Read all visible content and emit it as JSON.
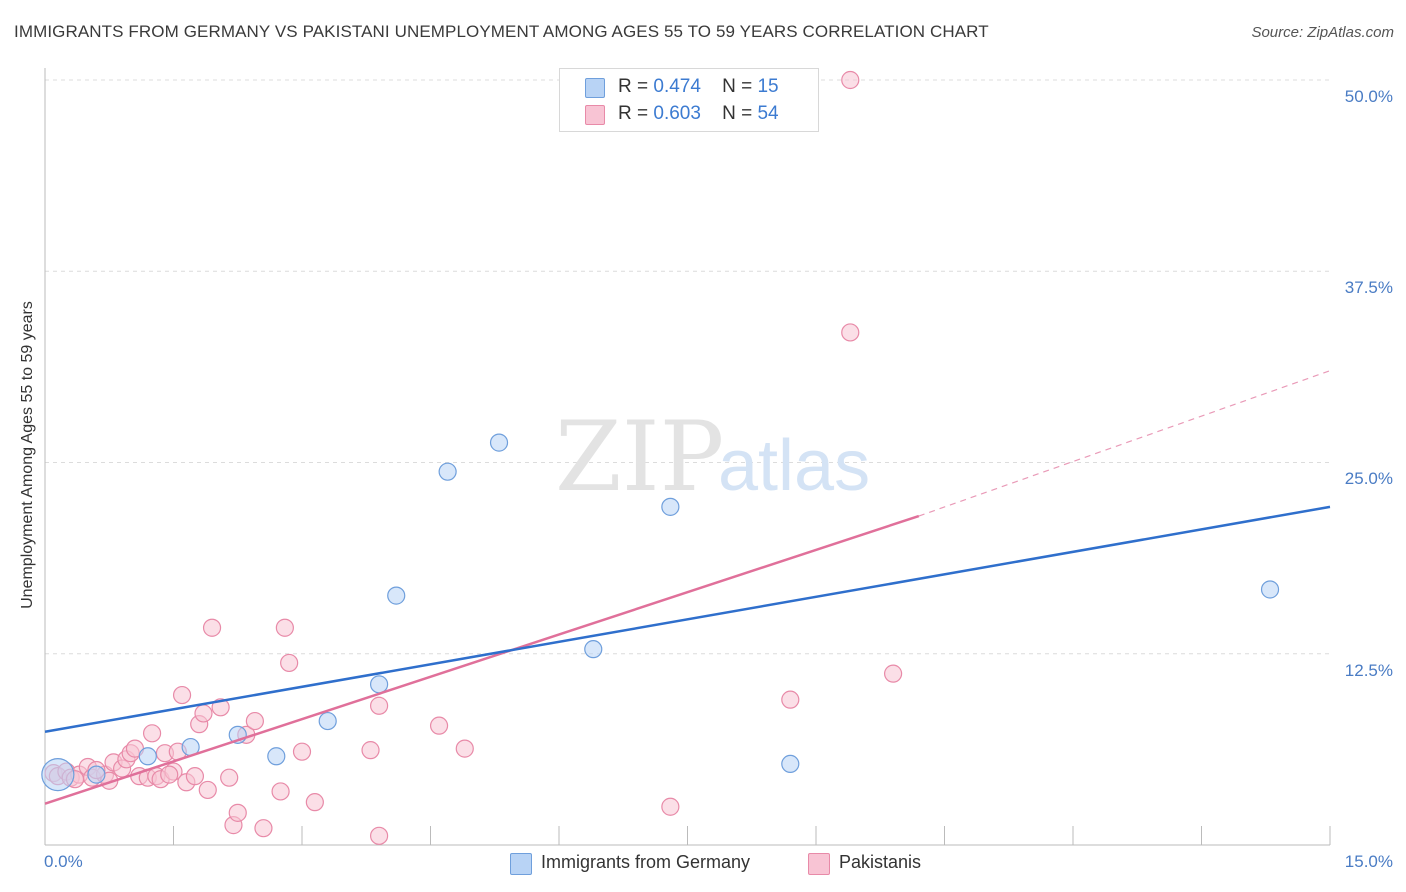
{
  "header": {
    "title": "IMMIGRANTS FROM GERMANY VS PAKISTANI UNEMPLOYMENT AMONG AGES 55 TO 59 YEARS CORRELATION CHART",
    "source": "Source: ZipAtlas.com"
  },
  "watermark": {
    "zip": "ZIP",
    "atlas": "atlas"
  },
  "legend_top": {
    "germany": {
      "r_label": "R =",
      "r_value": "0.474",
      "n_label": "N =",
      "n_value": "15"
    },
    "pakistan": {
      "r_label": "R =",
      "r_value": "0.603",
      "n_label": "N =",
      "n_value": "54"
    }
  },
  "legend_bottom": {
    "germany": "Immigrants from Germany",
    "pakistan": "Pakistanis"
  },
  "colors": {
    "germany_fill": "#b8d3f5",
    "germany_stroke": "#6f9fdc",
    "germany_line": "#2f6fcc",
    "pakistan_fill": "#f8c4d4",
    "pakistan_stroke": "#e88aa8",
    "pakistan_line": "#e0709a",
    "grid": "#dcdcdc",
    "tick_label": "#4a7cc4"
  },
  "chart_data": {
    "type": "scatter",
    "title": "IMMIGRANTS FROM GERMANY VS PAKISTANI UNEMPLOYMENT AMONG AGES 55 TO 59 YEARS CORRELATION CHART",
    "xlabel": "",
    "ylabel": "Unemployment Among Ages 55 to 59 years",
    "xlim": [
      0,
      15
    ],
    "ylim": [
      0,
      50
    ],
    "x_tick_labels": [
      "0.0%",
      "15.0%"
    ],
    "y_ticks": [
      12.5,
      25.0,
      37.5,
      50.0
    ],
    "y_tick_labels": [
      "12.5%",
      "25.0%",
      "37.5%",
      "50.0%"
    ],
    "grid": "horizontal dashed",
    "legend_position": "top-center",
    "series": [
      {
        "name": "Immigrants from Germany",
        "r": 0.474,
        "n": 15,
        "points": [
          {
            "x": 0.15,
            "y": 4.6,
            "size": "large"
          },
          {
            "x": 0.6,
            "y": 4.6
          },
          {
            "x": 1.2,
            "y": 5.8
          },
          {
            "x": 1.7,
            "y": 6.4
          },
          {
            "x": 2.25,
            "y": 7.2
          },
          {
            "x": 2.7,
            "y": 5.8
          },
          {
            "x": 3.3,
            "y": 8.1
          },
          {
            "x": 3.9,
            "y": 10.5
          },
          {
            "x": 4.1,
            "y": 16.3
          },
          {
            "x": 4.7,
            "y": 24.4
          },
          {
            "x": 5.3,
            "y": 26.3
          },
          {
            "x": 6.4,
            "y": 12.8
          },
          {
            "x": 7.3,
            "y": 22.1
          },
          {
            "x": 8.7,
            "y": 5.3
          },
          {
            "x": 14.3,
            "y": 16.7
          }
        ],
        "trend": {
          "x0": 0,
          "y0": 7.4,
          "x1": 15,
          "y1": 22.1
        }
      },
      {
        "name": "Pakistanis",
        "r": 0.603,
        "n": 54,
        "points": [
          {
            "x": 0.1,
            "y": 4.7
          },
          {
            "x": 0.15,
            "y": 4.5
          },
          {
            "x": 0.25,
            "y": 4.8
          },
          {
            "x": 0.3,
            "y": 4.4
          },
          {
            "x": 0.4,
            "y": 4.6
          },
          {
            "x": 0.5,
            "y": 5.1
          },
          {
            "x": 0.55,
            "y": 4.4
          },
          {
            "x": 0.7,
            "y": 4.6
          },
          {
            "x": 0.75,
            "y": 4.2
          },
          {
            "x": 0.8,
            "y": 5.4
          },
          {
            "x": 0.9,
            "y": 5.0
          },
          {
            "x": 0.95,
            "y": 5.6
          },
          {
            "x": 1.0,
            "y": 6.0
          },
          {
            "x": 1.05,
            "y": 6.3
          },
          {
            "x": 1.1,
            "y": 4.5
          },
          {
            "x": 1.2,
            "y": 4.4
          },
          {
            "x": 1.25,
            "y": 7.3
          },
          {
            "x": 1.3,
            "y": 4.5
          },
          {
            "x": 1.35,
            "y": 4.3
          },
          {
            "x": 1.4,
            "y": 6.0
          },
          {
            "x": 1.5,
            "y": 4.8
          },
          {
            "x": 1.55,
            "y": 6.1
          },
          {
            "x": 1.6,
            "y": 9.8
          },
          {
            "x": 1.65,
            "y": 4.1
          },
          {
            "x": 1.75,
            "y": 4.5
          },
          {
            "x": 1.8,
            "y": 7.9
          },
          {
            "x": 1.85,
            "y": 8.6
          },
          {
            "x": 1.9,
            "y": 3.6
          },
          {
            "x": 1.95,
            "y": 14.2
          },
          {
            "x": 2.05,
            "y": 9.0
          },
          {
            "x": 2.15,
            "y": 4.4
          },
          {
            "x": 2.2,
            "y": 1.3
          },
          {
            "x": 2.25,
            "y": 2.1
          },
          {
            "x": 2.35,
            "y": 7.2
          },
          {
            "x": 2.45,
            "y": 8.1
          },
          {
            "x": 2.55,
            "y": 1.1
          },
          {
            "x": 2.75,
            "y": 3.5
          },
          {
            "x": 2.8,
            "y": 14.2
          },
          {
            "x": 2.85,
            "y": 11.9
          },
          {
            "x": 3.0,
            "y": 6.1
          },
          {
            "x": 3.15,
            "y": 2.8
          },
          {
            "x": 3.8,
            "y": 6.2
          },
          {
            "x": 3.9,
            "y": 9.1
          },
          {
            "x": 3.9,
            "y": 0.6
          },
          {
            "x": 4.6,
            "y": 7.8
          },
          {
            "x": 4.9,
            "y": 6.3
          },
          {
            "x": 7.3,
            "y": 2.5
          },
          {
            "x": 8.7,
            "y": 9.5
          },
          {
            "x": 9.4,
            "y": 33.5
          },
          {
            "x": 9.4,
            "y": 50.0
          },
          {
            "x": 9.9,
            "y": 11.2
          },
          {
            "x": 0.6,
            "y": 4.9
          },
          {
            "x": 1.45,
            "y": 4.6
          },
          {
            "x": 0.35,
            "y": 4.3
          }
        ],
        "trend": {
          "x0": 0,
          "y0": 2.7,
          "x1": 10.2,
          "y1": 21.5
        },
        "trend_extension": {
          "x0": 10.2,
          "y0": 21.5,
          "x1": 15,
          "y1": 31.0
        }
      }
    ]
  }
}
